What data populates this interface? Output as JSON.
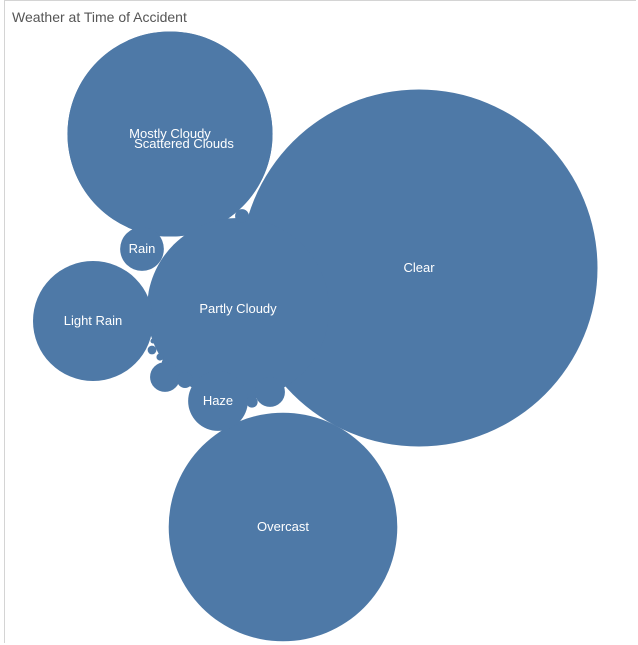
{
  "chart_data": {
    "type": "bubble",
    "title": "Weather at Time of Accident",
    "color": "#4e79a7",
    "label_color": "#ffffff",
    "bubbles": [
      {
        "label": "Clear",
        "value": 100
      },
      {
        "label": "Overcast",
        "value": 41
      },
      {
        "label": "Mostly Cloudy",
        "value": 33
      },
      {
        "label": "Scattered Clouds",
        "value": 33
      },
      {
        "label": "Partly Cloudy",
        "value": 26
      },
      {
        "label": "Light Rain",
        "value": 11.3
      },
      {
        "label": "Haze",
        "value": 2.8
      },
      {
        "label": "Rain",
        "value": 1.5
      },
      {
        "label": "",
        "value": 0.7
      },
      {
        "label": "",
        "value": 0.7
      },
      {
        "label": "",
        "value": 0.2
      },
      {
        "label": "",
        "value": 0.15
      },
      {
        "label": "",
        "value": 0.1
      },
      {
        "label": "",
        "value": 0.06
      },
      {
        "label": "",
        "value": 0.04
      },
      {
        "label": "",
        "value": 0.03
      },
      {
        "label": "",
        "value": 0.02
      }
    ]
  }
}
